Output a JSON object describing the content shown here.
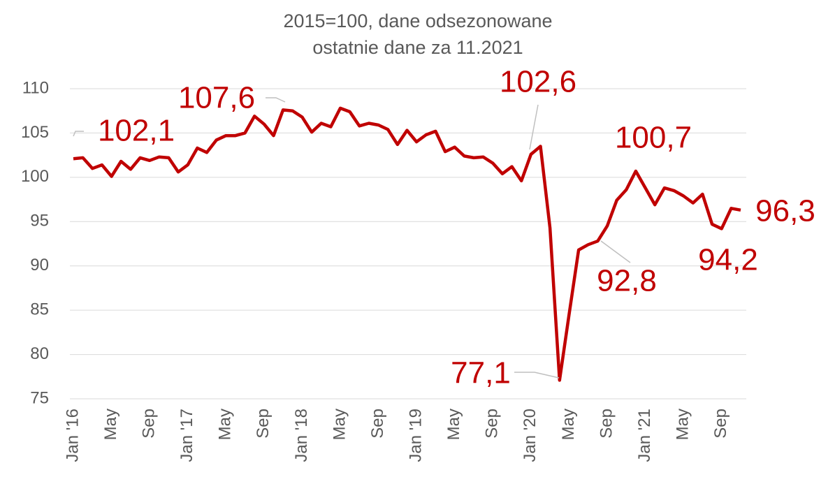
{
  "chart_data": {
    "type": "line",
    "title": "2015=100, dane odsezonowane",
    "subtitle": "ostatnie dane za 11.2021",
    "categories": [
      "Jan '16",
      null,
      null,
      null,
      "May",
      null,
      null,
      null,
      "Sep",
      null,
      null,
      null,
      "Jan '17",
      null,
      null,
      null,
      "May",
      null,
      null,
      null,
      "Sep",
      null,
      null,
      null,
      "Jan '18",
      null,
      null,
      null,
      "May",
      null,
      null,
      null,
      "Sep",
      null,
      null,
      null,
      "Jan '19",
      null,
      null,
      null,
      "May",
      null,
      null,
      null,
      "Sep",
      null,
      null,
      null,
      "Jan '20",
      null,
      null,
      null,
      "May",
      null,
      null,
      null,
      "Sep",
      null,
      null,
      null,
      "Jan '21",
      null,
      null,
      null,
      "May",
      null,
      null,
      null,
      "Sep",
      null,
      null
    ],
    "series": [
      {
        "name": null,
        "color": "#c00000",
        "values": [
          102.1,
          102.2,
          101.0,
          101.4,
          100.1,
          101.8,
          100.9,
          102.2,
          101.9,
          102.3,
          102.2,
          100.6,
          101.4,
          103.3,
          102.8,
          104.2,
          104.7,
          104.7,
          105.0,
          106.9,
          106.0,
          104.7,
          107.6,
          107.5,
          106.8,
          105.1,
          106.1,
          105.7,
          107.8,
          107.4,
          105.8,
          106.1,
          105.9,
          105.4,
          103.7,
          105.3,
          104.0,
          104.8,
          105.2,
          102.9,
          103.4,
          102.4,
          102.2,
          102.3,
          101.6,
          100.4,
          101.2,
          99.6,
          102.6,
          103.5,
          94.3,
          77.1,
          84.5,
          91.8,
          92.4,
          92.8,
          94.5,
          97.4,
          98.6,
          100.7,
          98.8,
          96.9,
          98.8,
          98.5,
          97.9,
          97.1,
          98.1,
          94.7,
          94.2,
          96.5,
          96.3
        ],
        "value_labels": [
          "102,1",
          null,
          null,
          null,
          null,
          null,
          null,
          null,
          null,
          null,
          null,
          null,
          null,
          null,
          null,
          null,
          null,
          null,
          null,
          null,
          null,
          null,
          "107,6",
          null,
          null,
          null,
          null,
          null,
          null,
          null,
          null,
          null,
          null,
          null,
          null,
          null,
          null,
          null,
          null,
          null,
          null,
          null,
          null,
          null,
          null,
          null,
          null,
          null,
          "102,6",
          null,
          null,
          "77,1",
          null,
          null,
          null,
          "92,8",
          null,
          null,
          null,
          "100,7",
          null,
          null,
          null,
          null,
          null,
          null,
          null,
          null,
          "94,2",
          null,
          "96,3"
        ]
      }
    ],
    "ylim": [
      75,
      110
    ],
    "yticks": [
      75,
      80,
      85,
      90,
      95,
      100,
      105,
      110
    ],
    "grid": true
  }
}
